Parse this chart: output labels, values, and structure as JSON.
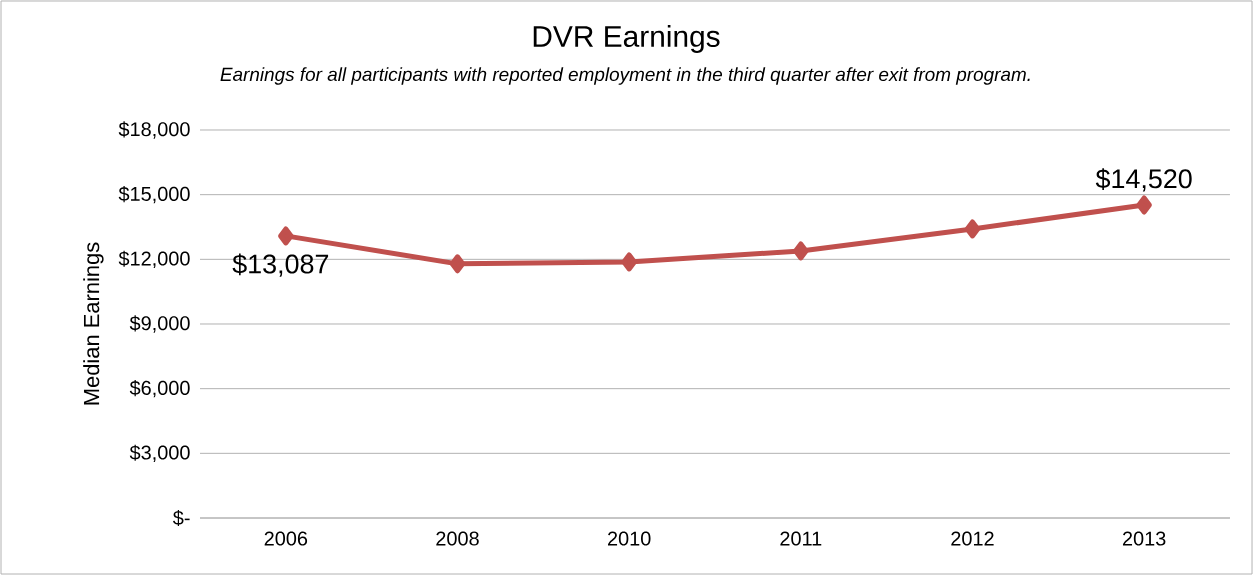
{
  "chart_data": {
    "type": "line",
    "title": "DVR Earnings",
    "subtitle": "Earnings for all participants with reported employment in the third quarter after exit from program.",
    "ylabel": "Median Earnings",
    "categories": [
      "2006",
      "2008",
      "2010",
      "2011",
      "2012",
      "2013"
    ],
    "series": [
      {
        "color": "#c0504d",
        "values": [
          13087,
          11790,
          11880,
          12390,
          13410,
          14520
        ],
        "value_labels": [
          "$13,087",
          null,
          null,
          null,
          null,
          "$14,520"
        ]
      }
    ],
    "ylim": [
      0,
      18000
    ],
    "yticks": [
      {
        "value": 0,
        "label": "$-"
      },
      {
        "value": 3000,
        "label": "$3,000"
      },
      {
        "value": 6000,
        "label": "$6,000"
      },
      {
        "value": 9000,
        "label": "$9,000"
      },
      {
        "value": 12000,
        "label": "$12,000"
      },
      {
        "value": 15000,
        "label": "$15,000"
      },
      {
        "value": 18000,
        "label": "$18,000"
      }
    ],
    "grid": "y",
    "marker": "diamond",
    "line_style": "solid"
  }
}
